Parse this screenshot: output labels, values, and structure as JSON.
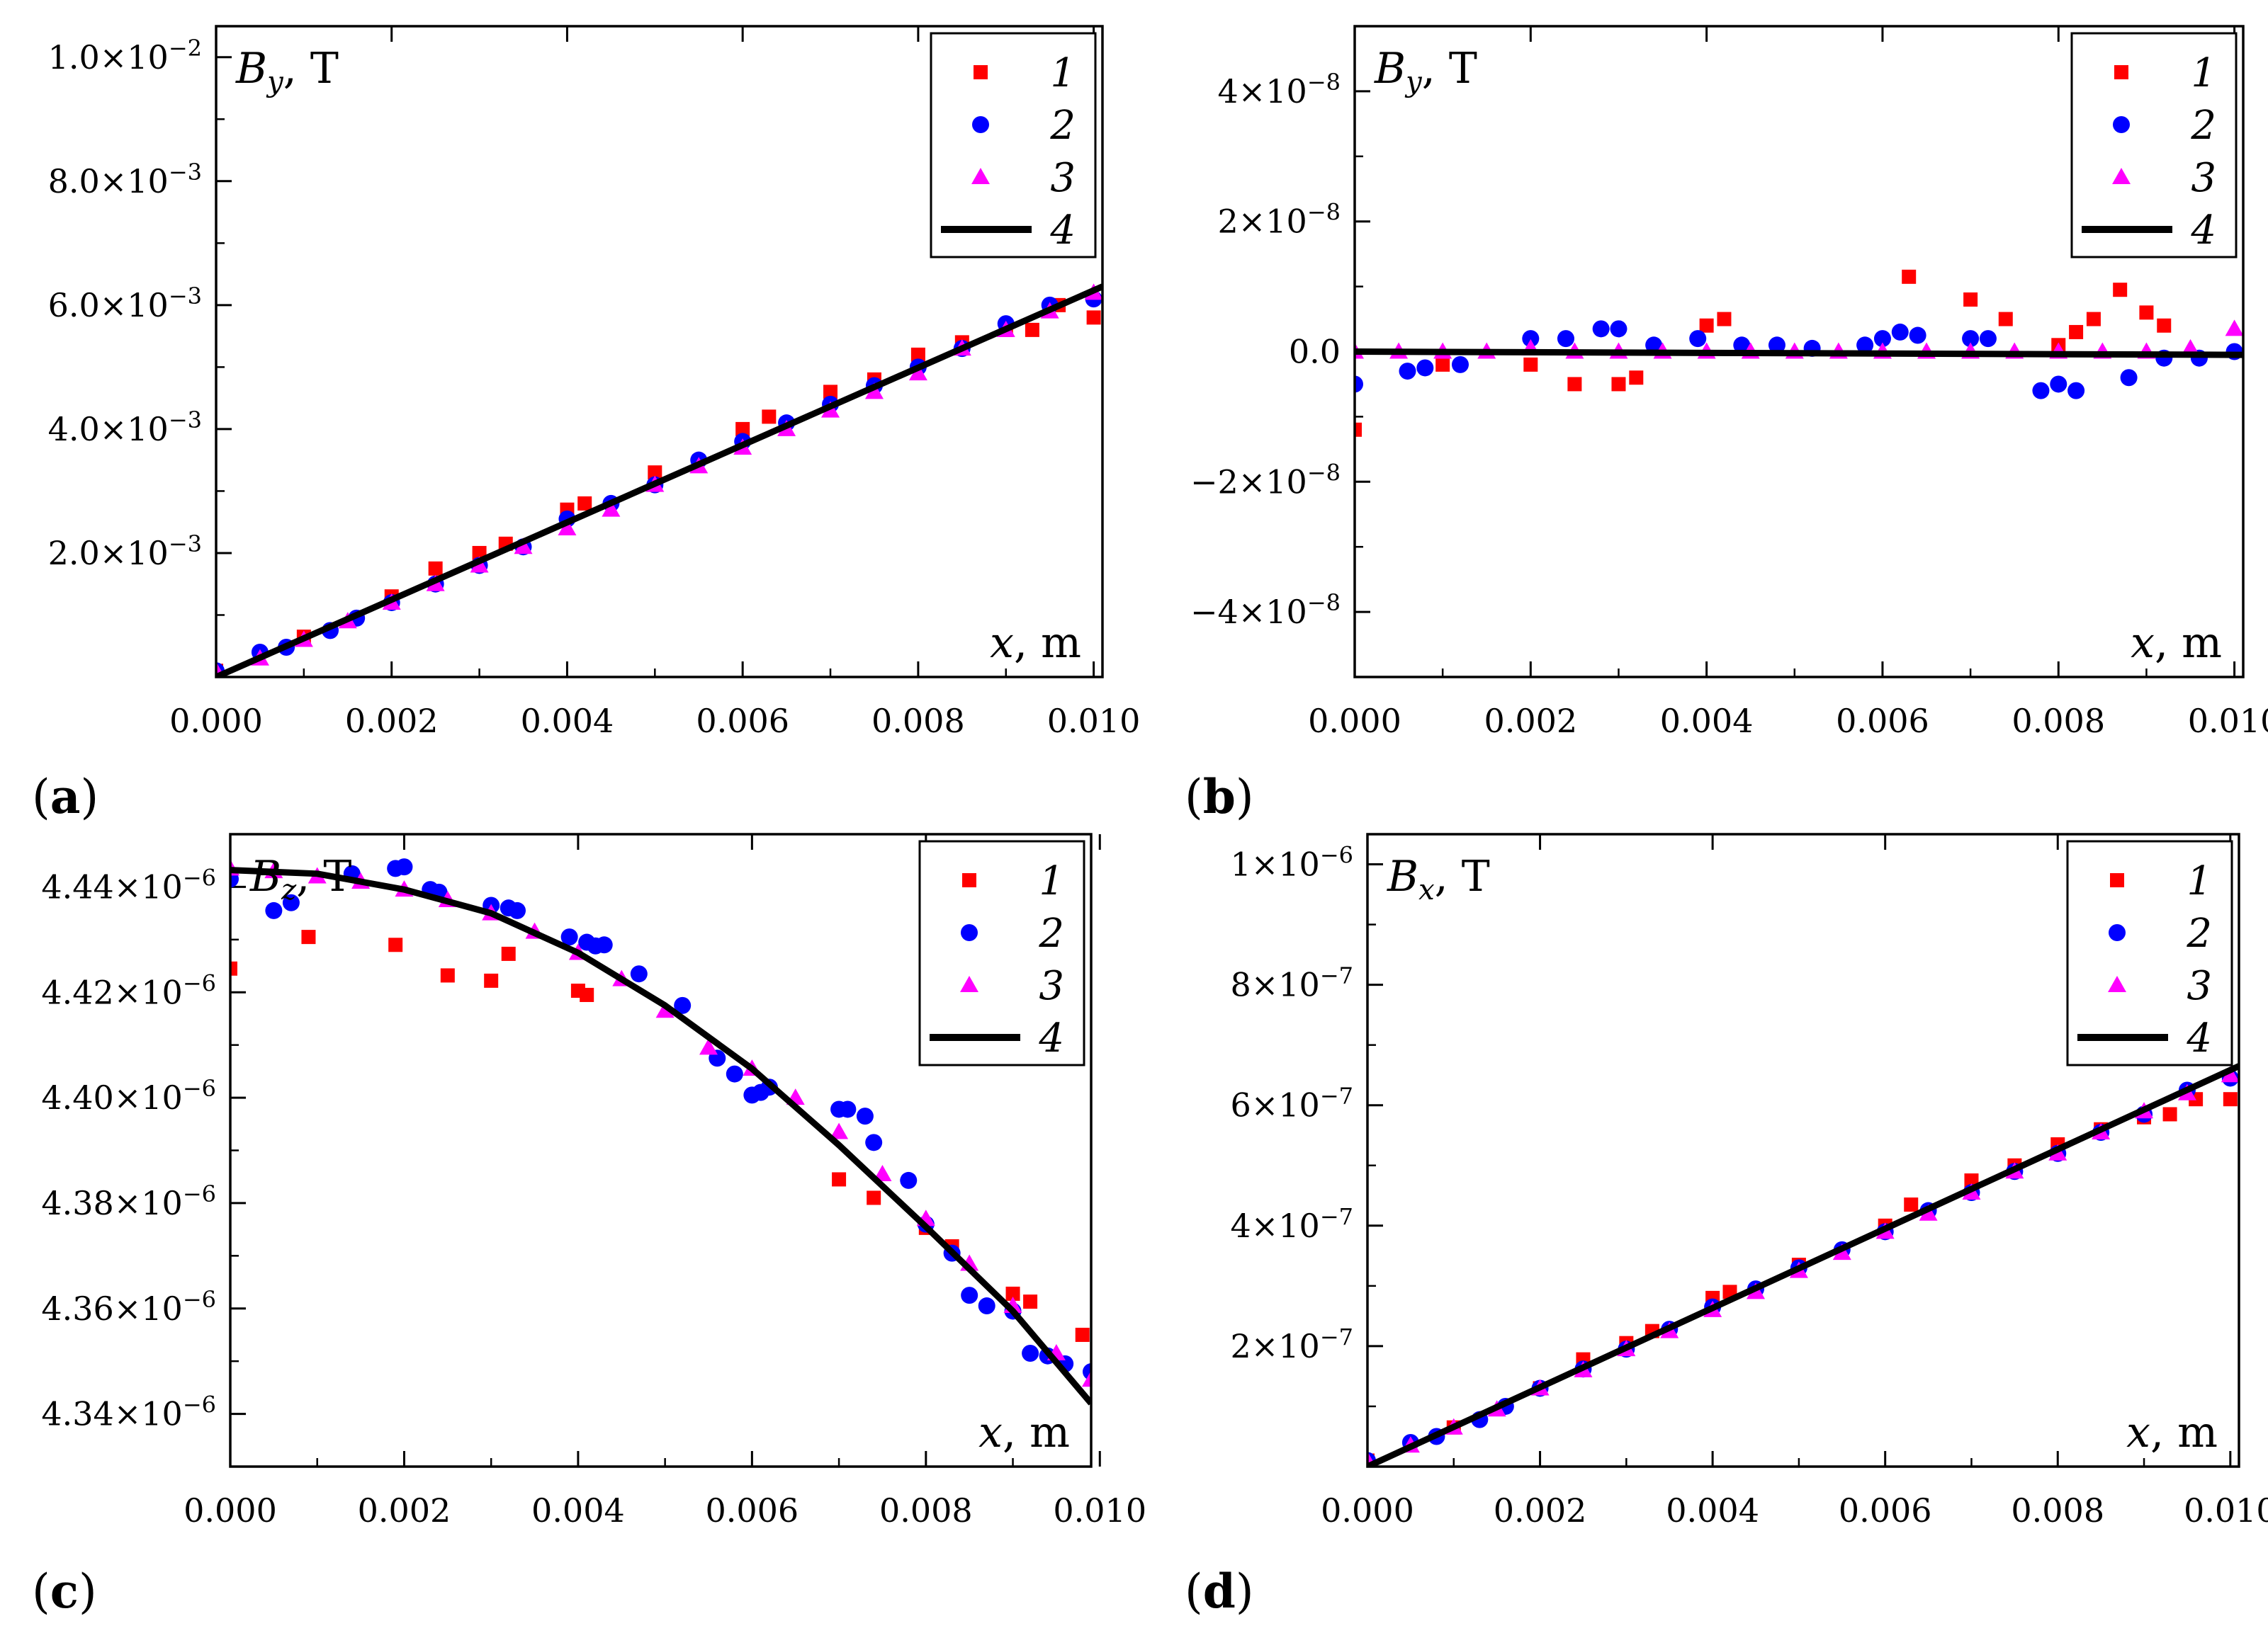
{
  "figure": {
    "title": "",
    "colors": {
      "series1": "#ff0000",
      "series2": "#0000ff",
      "series3": "#ff00ff",
      "series4": "#000000"
    }
  },
  "chart_data": [
    {
      "type": "scatter",
      "panel_label": "a",
      "ylabel_sym": "B",
      "ylabel_sub": "y",
      "ylabel_unit": ", T",
      "xlabel_sym": "x",
      "xlabel_unit": ", m",
      "xlim": [
        0,
        0.0101
      ],
      "ylim": [
        0,
        0.0105
      ],
      "xticks": [
        0,
        0.002,
        0.004,
        0.006,
        0.008,
        0.01
      ],
      "xtick_labels": [
        "0.000",
        "0.002",
        "0.004",
        "0.006",
        "0.008",
        "0.010"
      ],
      "yticks": [
        0.002,
        0.004,
        0.006,
        0.008,
        0.01
      ],
      "ytick_mantissa": [
        "2.0×10",
        "4.0×10",
        "6.0×10",
        "8.0×10",
        "1.0×10"
      ],
      "ytick_exp": [
        "−3",
        "−3",
        "−3",
        "−3",
        "−2"
      ],
      "legend": [
        "1",
        "2",
        "3",
        "4"
      ],
      "legend_position": "top-right",
      "series": [
        {
          "name": "1",
          "marker": "square",
          "x": [
            0,
            0.001,
            0.002,
            0.0025,
            0.003,
            0.0033,
            0.004,
            0.0042,
            0.005,
            0.006,
            0.0063,
            0.007,
            0.0075,
            0.008,
            0.0085,
            0.009,
            0.0093,
            0.0096,
            0.01
          ],
          "y": [
            0.0001,
            0.00065,
            0.0013,
            0.00175,
            0.002,
            0.00215,
            0.0027,
            0.0028,
            0.0033,
            0.004,
            0.0042,
            0.0046,
            0.0048,
            0.0052,
            0.0054,
            0.0056,
            0.0056,
            0.006,
            0.0058
          ]
        },
        {
          "name": "2",
          "marker": "circle",
          "x": [
            0,
            0.0005,
            0.0008,
            0.0013,
            0.0016,
            0.002,
            0.0025,
            0.003,
            0.0035,
            0.004,
            0.0045,
            0.005,
            0.0055,
            0.006,
            0.0065,
            0.007,
            0.0075,
            0.008,
            0.0085,
            0.009,
            0.0095,
            0.01
          ],
          "y": [
            0.0001,
            0.0004,
            0.00048,
            0.00075,
            0.00095,
            0.0012,
            0.0015,
            0.0018,
            0.0021,
            0.00255,
            0.0028,
            0.0031,
            0.0035,
            0.0038,
            0.0041,
            0.0044,
            0.0047,
            0.005,
            0.0053,
            0.0057,
            0.006,
            0.0061
          ]
        },
        {
          "name": "3",
          "marker": "triangle",
          "x": [
            0,
            0.0005,
            0.001,
            0.0015,
            0.002,
            0.0025,
            0.003,
            0.0035,
            0.004,
            0.0045,
            0.005,
            0.0055,
            0.006,
            0.0065,
            0.007,
            0.0075,
            0.008,
            0.0085,
            0.009,
            0.0095,
            0.01
          ],
          "y": [
            0.0001,
            0.0003,
            0.0006,
            0.0009,
            0.0012,
            0.0015,
            0.0018,
            0.0021,
            0.0024,
            0.0027,
            0.0031,
            0.0034,
            0.0037,
            0.004,
            0.0043,
            0.0046,
            0.0049,
            0.0053,
            0.0056,
            0.0059,
            0.0062
          ]
        },
        {
          "name": "4",
          "marker": "line",
          "x": [
            0,
            0.0101
          ],
          "y": [
            0,
            0.0063
          ]
        }
      ]
    },
    {
      "type": "scatter",
      "panel_label": "b",
      "ylabel_sym": "B",
      "ylabel_sub": "y",
      "ylabel_unit": ", T",
      "xlabel_sym": "x",
      "xlabel_unit": ", m",
      "xlim": [
        0,
        0.0101
      ],
      "ylim": [
        -5e-08,
        5e-08
      ],
      "xticks": [
        0,
        0.002,
        0.004,
        0.006,
        0.008,
        0.01
      ],
      "xtick_labels": [
        "0.000",
        "0.002",
        "0.004",
        "0.006",
        "0.008",
        "0.010"
      ],
      "yticks": [
        -4e-08,
        -2e-08,
        0,
        2e-08,
        4e-08
      ],
      "ytick_mantissa": [
        "−4×10",
        "−2×10",
        "0.0",
        "2×10",
        "4×10"
      ],
      "ytick_exp": [
        "−8",
        "−8",
        "",
        "−8",
        "−8"
      ],
      "legend": [
        "1",
        "2",
        "3",
        "4"
      ],
      "legend_position": "top-right",
      "series": [
        {
          "name": "1",
          "marker": "square",
          "x": [
            0,
            0.001,
            0.002,
            0.0025,
            0.003,
            0.0032,
            0.004,
            0.0042,
            0.0063,
            0.007,
            0.0074,
            0.008,
            0.0082,
            0.0084,
            0.0087,
            0.009,
            0.0092
          ],
          "y": [
            -1.2e-08,
            -2e-09,
            -2e-09,
            -5e-09,
            -5e-09,
            -4e-09,
            4e-09,
            5e-09,
            1.15e-08,
            8e-09,
            5e-09,
            1e-09,
            3e-09,
            5e-09,
            9.5e-09,
            6e-09,
            4e-09
          ]
        },
        {
          "name": "2",
          "marker": "circle",
          "x": [
            0,
            0.0006,
            0.0008,
            0.0012,
            0.002,
            0.0024,
            0.0028,
            0.003,
            0.0034,
            0.0039,
            0.0044,
            0.0048,
            0.0052,
            0.0058,
            0.006,
            0.0062,
            0.0064,
            0.007,
            0.0072,
            0.0078,
            0.008,
            0.0082,
            0.0088,
            0.0092,
            0.0096,
            0.01
          ],
          "y": [
            -5e-09,
            -3e-09,
            -2.5e-09,
            -2e-09,
            2e-09,
            2e-09,
            3.5e-09,
            3.5e-09,
            1e-09,
            2e-09,
            1e-09,
            1e-09,
            5e-10,
            1e-09,
            2e-09,
            3e-09,
            2.5e-09,
            2e-09,
            2e-09,
            -6e-09,
            -5e-09,
            -6e-09,
            -4e-09,
            -1e-09,
            -1e-09,
            0
          ]
        },
        {
          "name": "3",
          "marker": "triangle",
          "x": [
            0,
            0.0005,
            0.001,
            0.0015,
            0.002,
            0.0025,
            0.003,
            0.0035,
            0.004,
            0.0045,
            0.005,
            0.0055,
            0.006,
            0.0065,
            0.007,
            0.0075,
            0.008,
            0.0085,
            0.009,
            0.0095,
            0.01
          ],
          "y": [
            0,
            0,
            0,
            0,
            5e-10,
            0,
            0,
            0,
            0,
            0,
            0,
            0,
            0,
            0,
            0,
            0,
            0,
            0,
            0,
            5e-10,
            3.5e-09
          ]
        },
        {
          "name": "4",
          "marker": "line",
          "x": [
            0,
            0.0101
          ],
          "y": [
            0,
            -5e-10
          ]
        }
      ]
    },
    {
      "type": "scatter",
      "panel_label": "c",
      "ylabel_sym": "B",
      "ylabel_sub": "z",
      "ylabel_unit": ", T",
      "xlabel_sym": "x",
      "xlabel_unit": ", m",
      "xlim": [
        0,
        0.0099
      ],
      "ylim": [
        4.33e-06,
        4.45e-06
      ],
      "xticks": [
        0,
        0.002,
        0.004,
        0.006,
        0.008,
        0.01
      ],
      "xtick_labels": [
        "0.000",
        "0.002",
        "0.004",
        "0.006",
        "0.008",
        "0.010"
      ],
      "yticks": [
        4.34e-06,
        4.36e-06,
        4.38e-06,
        4.4e-06,
        4.42e-06,
        4.44e-06
      ],
      "ytick_mantissa": [
        "4.34×10",
        "4.36×10",
        "4.38×10",
        "4.40×10",
        "4.42×10",
        "4.44×10"
      ],
      "ytick_exp": [
        "−6",
        "−6",
        "−6",
        "−6",
        "−6",
        "−6"
      ],
      "legend": [
        "1",
        "2",
        "3",
        "4"
      ],
      "legend_position": "top-right",
      "series": [
        {
          "name": "1",
          "marker": "square",
          "x": [
            0,
            0.0009,
            0.0019,
            0.0025,
            0.003,
            0.0032,
            0.004,
            0.0041,
            0.007,
            0.0074,
            0.008,
            0.0083,
            0.009,
            0.0092,
            0.0098
          ],
          "y": [
            4.4245e-06,
            4.4305e-06,
            4.429e-06,
            4.4232e-06,
            4.4222e-06,
            4.4273e-06,
            4.4203e-06,
            4.4195e-06,
            4.3845e-06,
            4.381e-06,
            4.3753e-06,
            4.3718e-06,
            4.3628e-06,
            4.3613e-06,
            4.355e-06
          ]
        },
        {
          "name": "2",
          "marker": "circle",
          "x": [
            0,
            0.0005,
            0.0007,
            0.0014,
            0.0019,
            0.002,
            0.0023,
            0.0024,
            0.003,
            0.0032,
            0.0033,
            0.0039,
            0.0041,
            0.0042,
            0.0043,
            0.0047,
            0.0052,
            0.0056,
            0.0058,
            0.006,
            0.0061,
            0.0062,
            0.007,
            0.0071,
            0.0073,
            0.0074,
            0.0078,
            0.008,
            0.0083,
            0.0085,
            0.0087,
            0.009,
            0.0092,
            0.0094,
            0.0096,
            0.0099
          ],
          "y": [
            4.4415e-06,
            4.4355e-06,
            4.437e-06,
            4.4425e-06,
            4.4435e-06,
            4.4438e-06,
            4.4395e-06,
            4.439e-06,
            4.4365e-06,
            4.436e-06,
            4.4355e-06,
            4.4305e-06,
            4.4295e-06,
            4.4288e-06,
            4.429e-06,
            4.4235e-06,
            4.4175e-06,
            4.4075e-06,
            4.4045e-06,
            4.4005e-06,
            4.401e-06,
            4.402e-06,
            4.3978e-06,
            4.3978e-06,
            4.3965e-06,
            4.3915e-06,
            4.3843e-06,
            4.376e-06,
            4.3705e-06,
            4.3625e-06,
            4.3605e-06,
            4.3595e-06,
            4.3515e-06,
            4.351e-06,
            4.3495e-06,
            4.348e-06
          ]
        },
        {
          "name": "3",
          "marker": "triangle",
          "x": [
            0,
            0.0005,
            0.001,
            0.0015,
            0.002,
            0.0025,
            0.003,
            0.0035,
            0.004,
            0.0045,
            0.005,
            0.0055,
            0.006,
            0.0065,
            0.007,
            0.0075,
            0.008,
            0.0085,
            0.009,
            0.0095,
            0.0099
          ],
          "y": [
            4.4435e-06,
            4.443e-06,
            4.442e-06,
            4.441e-06,
            4.4395e-06,
            4.4375e-06,
            4.435e-06,
            4.4315e-06,
            4.4275e-06,
            4.4225e-06,
            4.4165e-06,
            4.4095e-06,
            4.4055e-06,
            4.4e-06,
            4.3935e-06,
            4.3855e-06,
            4.377e-06,
            4.3685e-06,
            4.3605e-06,
            4.3515e-06,
            4.3465e-06
          ]
        },
        {
          "name": "4",
          "marker": "line",
          "x": [
            0,
            0.001,
            0.002,
            0.003,
            0.004,
            0.005,
            0.006,
            0.007,
            0.008,
            0.009,
            0.0099
          ],
          "y": [
            4.4432e-06,
            4.4425e-06,
            4.4395e-06,
            4.435e-06,
            4.4275e-06,
            4.4175e-06,
            4.4055e-06,
            4.391e-06,
            4.3755e-06,
            4.3595e-06,
            4.342e-06
          ]
        }
      ]
    },
    {
      "type": "scatter",
      "panel_label": "d",
      "ylabel_sym": "B",
      "ylabel_sub": "x",
      "ylabel_unit": ", T",
      "xlabel_sym": "x",
      "xlabel_unit": ", m",
      "xlim": [
        0,
        0.0101
      ],
      "ylim": [
        0,
        1.05e-06
      ],
      "xticks": [
        0,
        0.002,
        0.004,
        0.006,
        0.008,
        0.01
      ],
      "xtick_labels": [
        "0.000",
        "0.002",
        "0.004",
        "0.006",
        "0.008",
        "0.010"
      ],
      "yticks": [
        2e-07,
        4e-07,
        6e-07,
        8e-07,
        1e-06
      ],
      "ytick_mantissa": [
        "2×10",
        "4×10",
        "6×10",
        "8×10",
        "1×10"
      ],
      "ytick_exp": [
        "−7",
        "−7",
        "−7",
        "−7",
        "−6"
      ],
      "legend": [
        "1",
        "2",
        "3",
        "4"
      ],
      "legend_position": "top-right",
      "series": [
        {
          "name": "1",
          "marker": "square",
          "x": [
            0,
            0.001,
            0.002,
            0.0025,
            0.003,
            0.0033,
            0.004,
            0.0042,
            0.005,
            0.006,
            0.0063,
            0.007,
            0.0075,
            0.008,
            0.0085,
            0.009,
            0.0093,
            0.0096,
            0.01
          ],
          "y": [
            1e-08,
            6.5e-08,
            1.3e-07,
            1.78e-07,
            2.05e-07,
            2.25e-07,
            2.8e-07,
            2.9e-07,
            3.35e-07,
            4e-07,
            4.35e-07,
            4.75e-07,
            5e-07,
            5.35e-07,
            5.6e-07,
            5.8e-07,
            5.85e-07,
            6.1e-07,
            6.1e-07
          ]
        },
        {
          "name": "2",
          "marker": "circle",
          "x": [
            0,
            0.0005,
            0.0008,
            0.0013,
            0.0016,
            0.002,
            0.0025,
            0.003,
            0.0035,
            0.004,
            0.0045,
            0.005,
            0.0055,
            0.006,
            0.0065,
            0.007,
            0.0075,
            0.008,
            0.0085,
            0.009,
            0.0095,
            0.01
          ],
          "y": [
            1e-08,
            4e-08,
            5e-08,
            7.8e-08,
            1e-07,
            1.3e-07,
            1.62e-07,
            1.95e-07,
            2.28e-07,
            2.65e-07,
            2.95e-07,
            3.3e-07,
            3.6e-07,
            3.9e-07,
            4.25e-07,
            4.55e-07,
            4.9e-07,
            5.2e-07,
            5.55e-07,
            5.85e-07,
            6.25e-07,
            6.45e-07
          ]
        },
        {
          "name": "3",
          "marker": "triangle",
          "x": [
            0,
            0.0005,
            0.001,
            0.0015,
            0.002,
            0.0025,
            0.003,
            0.0035,
            0.004,
            0.0045,
            0.005,
            0.0055,
            0.006,
            0.0065,
            0.007,
            0.0075,
            0.008,
            0.0085,
            0.009,
            0.0095,
            0.01
          ],
          "y": [
            1e-08,
            3.5e-08,
            6.5e-08,
            9.5e-08,
            1.3e-07,
            1.6e-07,
            1.95e-07,
            2.25e-07,
            2.6e-07,
            2.9e-07,
            3.25e-07,
            3.55e-07,
            3.9e-07,
            4.2e-07,
            4.55e-07,
            4.9e-07,
            5.2e-07,
            5.55e-07,
            5.9e-07,
            6.2e-07,
            6.5e-07
          ]
        },
        {
          "name": "4",
          "marker": "line",
          "x": [
            0,
            0.0101
          ],
          "y": [
            0,
            6.65e-07
          ]
        }
      ]
    }
  ]
}
